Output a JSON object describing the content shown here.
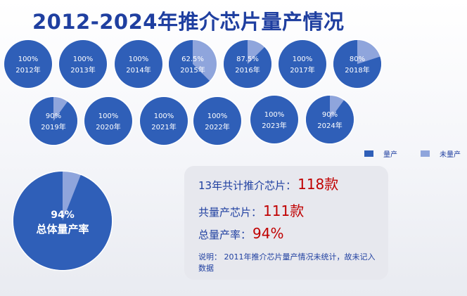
{
  "chart_data": [
    {
      "type": "pie",
      "title": "2012-2024年推介芯片量产情况",
      "series_names": [
        "量产",
        "未量产"
      ],
      "colors": {
        "mass_produced": "#2f5fb8",
        "not_mass_produced": "#8fa5dc",
        "ring": "#ffffff"
      },
      "legend_position": "right",
      "pies": [
        {
          "label": "100%",
          "year": "2012年",
          "value": 100
        },
        {
          "label": "100%",
          "year": "2013年",
          "value": 100
        },
        {
          "label": "100%",
          "year": "2014年",
          "value": 100
        },
        {
          "label": "62.5%",
          "year": "2015年",
          "value": 62.5
        },
        {
          "label": "87.5%",
          "year": "2016年",
          "value": 87.5
        },
        {
          "label": "100%",
          "year": "2017年",
          "value": 100
        },
        {
          "label": "80%",
          "year": "2018年",
          "value": 80
        },
        {
          "label": "90%",
          "year": "2019年",
          "value": 90
        },
        {
          "label": "100%",
          "year": "2020年",
          "value": 100
        },
        {
          "label": "100%",
          "year": "2021年",
          "value": 100
        },
        {
          "label": "100%",
          "year": "2022年",
          "value": 100
        },
        {
          "label": "100%",
          "year": "2023年",
          "value": 100
        },
        {
          "label": "90%",
          "year": "2024年",
          "value": 90
        }
      ]
    },
    {
      "type": "pie",
      "label": "94%",
      "caption": "总体量产率",
      "value": 94
    }
  ],
  "legend": [
    {
      "label": "量产",
      "color": "#2f5fb8"
    },
    {
      "label": "未量产",
      "color": "#8fa5dc"
    }
  ],
  "info": {
    "total_label": "13年共计推介芯片：",
    "total_value": "118款",
    "mass_label": "共量产芯片：",
    "mass_value": "111款",
    "rate_label": "总量产率：",
    "rate_value": "94%",
    "note": "说明：  2011年推介芯片量产情况未统计，故未记入数据"
  }
}
